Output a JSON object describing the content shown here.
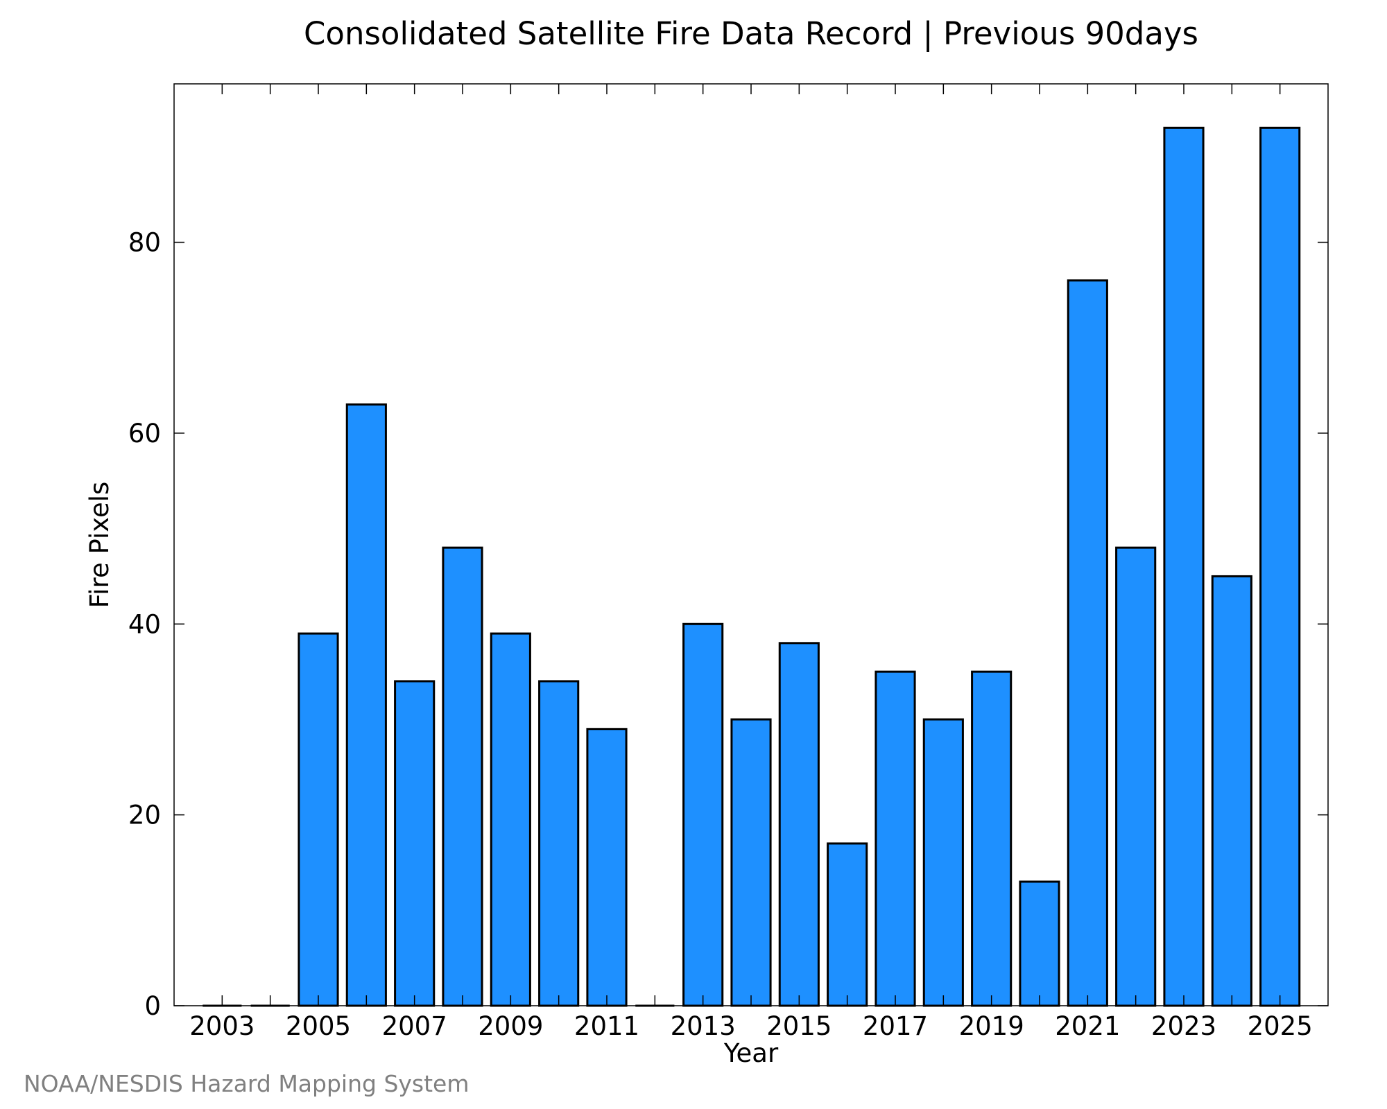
{
  "chart_data": {
    "type": "bar",
    "title": "Consolidated Satellite Fire Data Record | Previous 90days",
    "xlabel": "Year",
    "ylabel": "Fire Pixels",
    "categories": [
      2003,
      2004,
      2005,
      2006,
      2007,
      2008,
      2009,
      2010,
      2011,
      2012,
      2013,
      2014,
      2015,
      2016,
      2017,
      2018,
      2019,
      2020,
      2021,
      2022,
      2023,
      2024,
      2025
    ],
    "values": [
      0,
      0,
      39,
      63,
      34,
      48,
      39,
      34,
      29,
      0,
      40,
      30,
      38,
      17,
      35,
      30,
      35,
      13,
      76,
      48,
      92,
      45,
      92
    ],
    "x_tick_labels": [
      "2003",
      "2005",
      "2007",
      "2009",
      "2011",
      "2013",
      "2015",
      "2017",
      "2019",
      "2021",
      "2023",
      "2025"
    ],
    "y_tick_labels": [
      "0",
      "20",
      "40",
      "60",
      "80"
    ],
    "xlim": [
      2002.0,
      2026.0
    ],
    "ylim": [
      0,
      96.6
    ],
    "grid": false,
    "bar_color": "#1e90ff",
    "bar_edge_color": "#000000"
  },
  "footer": {
    "credit": "NOAA/NESDIS Hazard Mapping System",
    "credit_color": "#808080"
  }
}
